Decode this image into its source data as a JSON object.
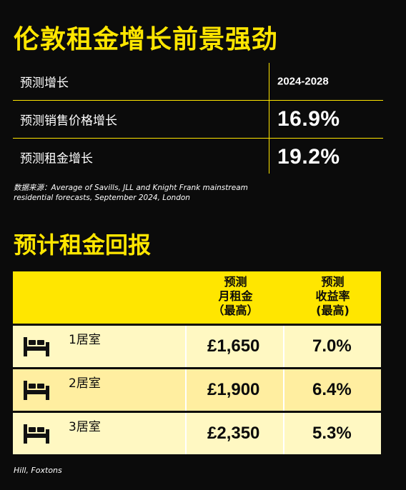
{
  "title_growth": "伦敦租金增长前景强劲",
  "growth_table": {
    "period_label": "预测增长",
    "period_value": "2024-2028",
    "rows": [
      {
        "label": "预测销售价格增长",
        "value": "16.9%"
      },
      {
        "label": "预测租金增长",
        "value": "19.2%"
      }
    ]
  },
  "source_note": "数据来源：Average of Savills, JLL and Knight Frank mainstream residential forecasts, September 2024, London",
  "title_returns": "预计租金回报",
  "returns_table": {
    "col_rent": [
      "预测",
      "月租金",
      "（最高）"
    ],
    "col_yield": [
      "预测",
      "收益率",
      "(最高)"
    ],
    "rows": [
      {
        "room": "1居室",
        "rent": "£1,650",
        "yield": "7.0%",
        "icon": "bed-icon"
      },
      {
        "room": "2居室",
        "rent": "£1,900",
        "yield": "6.4%",
        "icon": "bed-icon"
      },
      {
        "room": "3居室",
        "rent": "£2,350",
        "yield": "5.3%",
        "icon": "bed-icon"
      }
    ]
  },
  "credit": "Hill, Foxtons",
  "colors": {
    "accent": "#ffe600",
    "background": "#0b0b0b",
    "row_light": "#fff8c2",
    "row_mid": "#ffeea0"
  }
}
